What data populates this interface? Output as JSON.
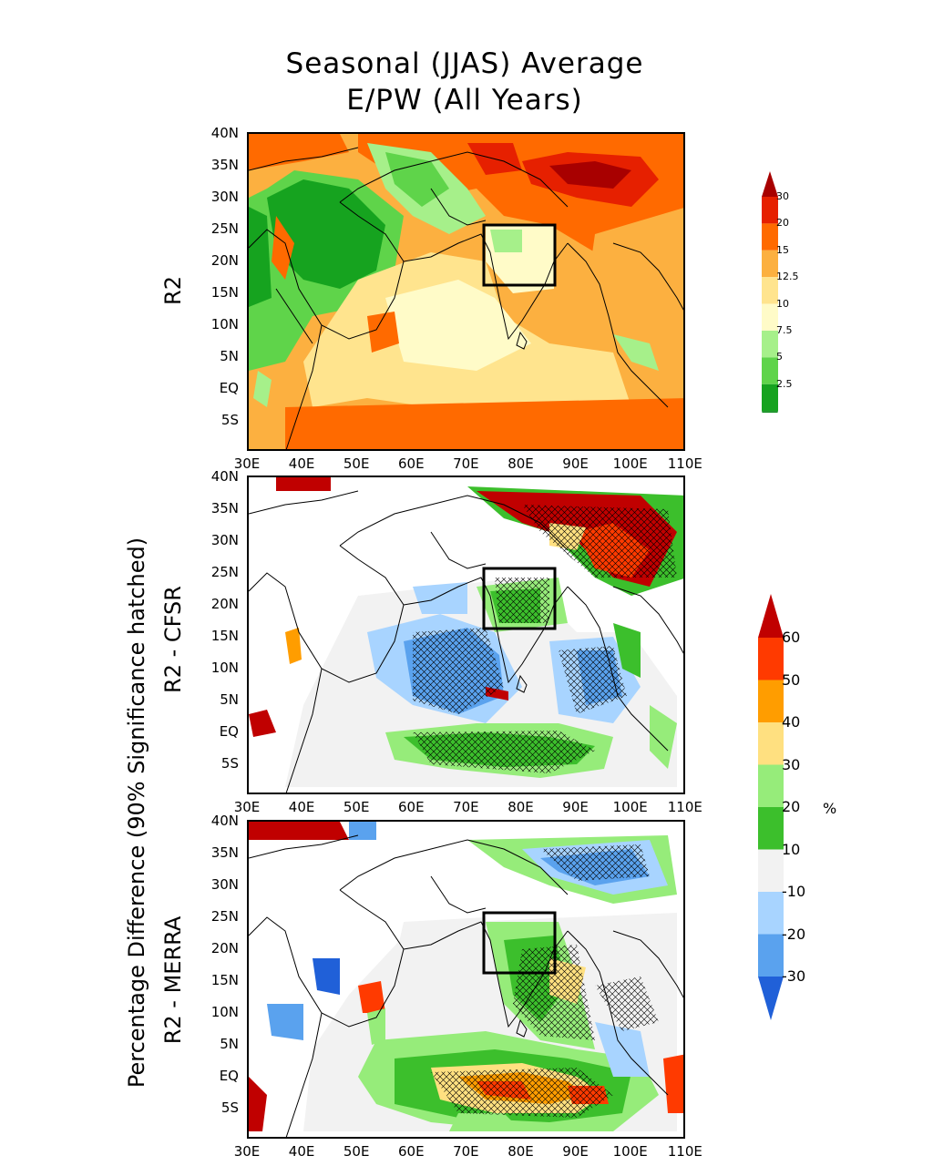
{
  "title": {
    "line1": "Seasonal (JJAS) Average",
    "line2": "E/PW (All Years)"
  },
  "panels": [
    {
      "id": "r2",
      "label": "R2"
    },
    {
      "id": "cfsr",
      "label": "R2 - CFSR"
    },
    {
      "id": "merra",
      "label": "R2 - MERRA"
    }
  ],
  "side_label": "Percentage Difference (90% Significance hatched)",
  "lat_ticks": [
    "40N",
    "35N",
    "30N",
    "25N",
    "20N",
    "15N",
    "10N",
    "5N",
    "EQ",
    "5S"
  ],
  "lon_ticks": [
    "30E",
    "40E",
    "50E",
    "60E",
    "70E",
    "80E",
    "90E",
    "100E",
    "110E"
  ],
  "colorbar_top": {
    "levels": [
      "30",
      "20",
      "15",
      "12.5",
      "10",
      "7.5",
      "5",
      "2.5"
    ],
    "colors": [
      "#a80000",
      "#e62000",
      "#ff6a00",
      "#fcb040",
      "#ffe48e",
      "#fffbc8",
      "#a6f08a",
      "#5fd44a",
      "#16a31f",
      "#0a8a1a"
    ]
  },
  "colorbar_bottom": {
    "levels": [
      "60",
      "50",
      "40",
      "30",
      "20",
      "10",
      "-10",
      "-20",
      "-30"
    ],
    "unit": "%",
    "colors": [
      "#c00000",
      "#ff3a00",
      "#ff9d00",
      "#ffe080",
      "#96ec7a",
      "#3cbf2c",
      "#f2f2f2",
      "#a8d4ff",
      "#5aa2ee",
      "#2060d8"
    ]
  },
  "box_region": "73E-86E, 16N-26N"
}
